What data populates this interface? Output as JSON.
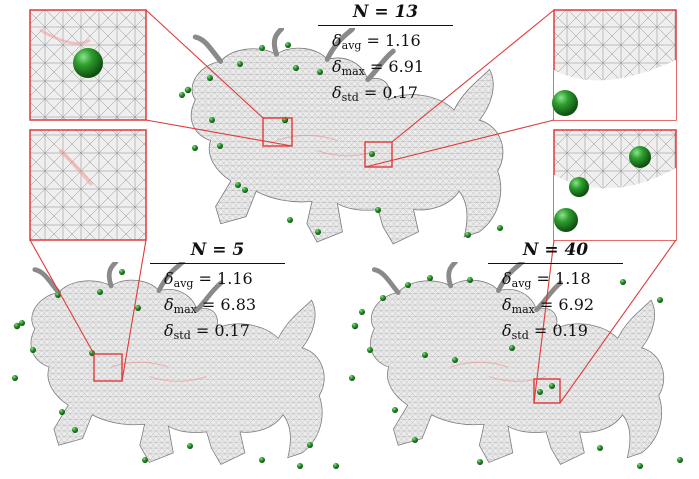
{
  "figure": {
    "panels": [
      {
        "id": "top",
        "title": "N = 13",
        "delta_avg": "1.16",
        "delta_max": "6.91",
        "delta_std": "0.17"
      },
      {
        "id": "left",
        "title": "N = 5",
        "delta_avg": "1.16",
        "delta_max": "6.83",
        "delta_std": "0.17"
      },
      {
        "id": "right",
        "title": "N = 40",
        "delta_avg": "1.18",
        "delta_max": "6.92",
        "delta_std": "0.19"
      }
    ],
    "labels": {
      "avg_sub": "avg",
      "max_sub": "max",
      "std_sub": "std",
      "delta_symbol": "δ",
      "equals": " = "
    },
    "colors": {
      "highlight_box": "#e13a3a",
      "sample_point": "#1f8a1f",
      "mesh": "#9a9a9a",
      "mesh_fill": "#ededed"
    }
  }
}
